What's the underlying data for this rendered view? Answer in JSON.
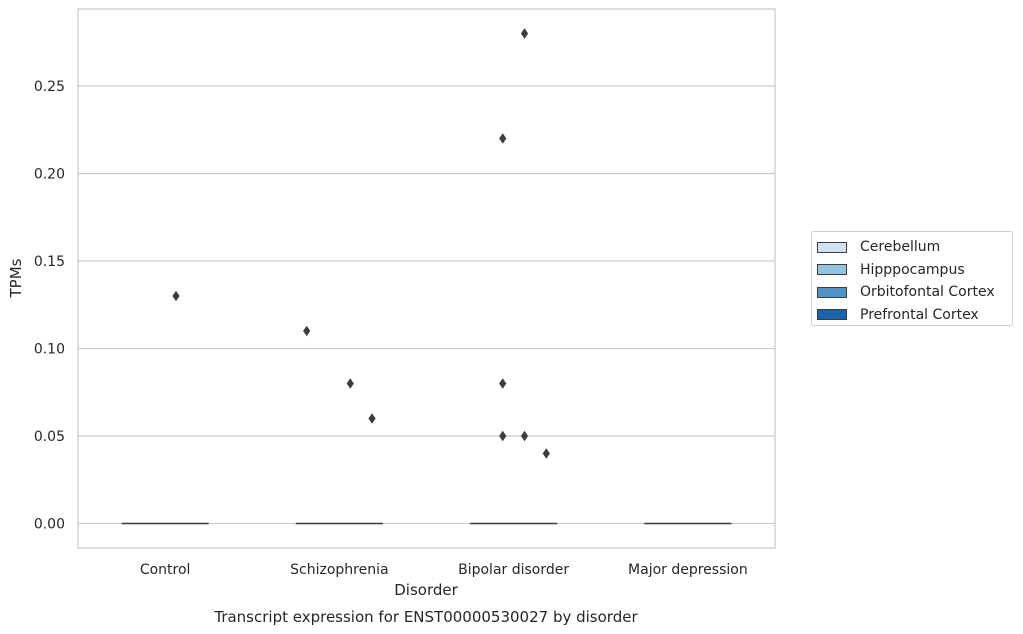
{
  "chart_data": {
    "type": "box",
    "title": "Transcript expression for ENST00000530027 by disorder",
    "xlabel": "Disorder",
    "ylabel": "TPMs",
    "categories": [
      "Control",
      "Schizophrenia",
      "Bipolar disorder",
      "Major depression"
    ],
    "ylim": [
      -0.014,
      0.294
    ],
    "yticks": [
      "0.00",
      "0.05",
      "0.10",
      "0.15",
      "0.20",
      "0.25"
    ],
    "grid": true,
    "legend_position": "right",
    "series": [
      {
        "name": "Cerebellum",
        "color": "#d1e1ef",
        "median": [
          0,
          0,
          0,
          0
        ]
      },
      {
        "name": "Hipppocampus",
        "color": "#94c3df",
        "median": [
          0,
          0,
          0,
          0
        ]
      },
      {
        "name": "Orbitofontal Cortex",
        "color": "#4d93c6",
        "median": [
          0,
          0,
          0,
          0
        ]
      },
      {
        "name": "Prefrontal Cortex",
        "color": "#1a64ad",
        "median": [
          0,
          0,
          0,
          0
        ]
      }
    ],
    "outliers": [
      {
        "category": "Control",
        "series": "Orbitofontal Cortex",
        "value": 0.13
      },
      {
        "category": "Schizophrenia",
        "series": "Cerebellum",
        "value": 0.11
      },
      {
        "category": "Schizophrenia",
        "series": "Orbitofontal Cortex",
        "value": 0.08
      },
      {
        "category": "Schizophrenia",
        "series": "Prefrontal Cortex",
        "value": 0.06
      },
      {
        "category": "Bipolar disorder",
        "series": "Hipppocampus",
        "value": 0.22
      },
      {
        "category": "Bipolar disorder",
        "series": "Hipppocampus",
        "value": 0.08
      },
      {
        "category": "Bipolar disorder",
        "series": "Hipppocampus",
        "value": 0.05
      },
      {
        "category": "Bipolar disorder",
        "series": "Orbitofontal Cortex",
        "value": 0.28
      },
      {
        "category": "Bipolar disorder",
        "series": "Orbitofontal Cortex",
        "value": 0.05
      },
      {
        "category": "Bipolar disorder",
        "series": "Prefrontal Cortex",
        "value": 0.04
      }
    ]
  }
}
